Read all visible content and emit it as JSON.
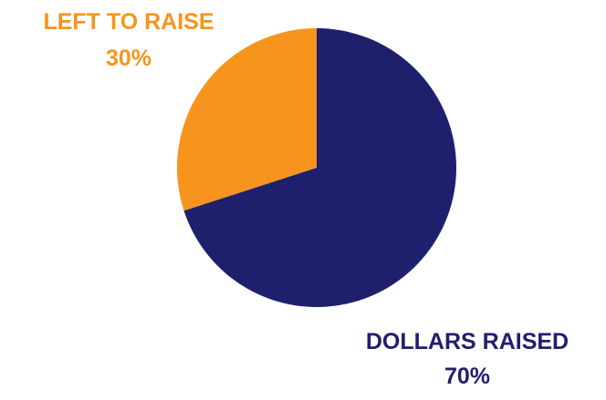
{
  "chart_data": {
    "type": "pie",
    "slices": [
      {
        "name": "DOLLARS RAISED",
        "value": 70,
        "value_label": "70%",
        "color": "#1f206d"
      },
      {
        "name": "LEFT TO RAISE",
        "value": 30,
        "value_label": "30%",
        "color": "#f7941d"
      }
    ],
    "start_angle_deg": 0,
    "direction": "clockwise",
    "legend": "none",
    "background": "#ffffff"
  }
}
